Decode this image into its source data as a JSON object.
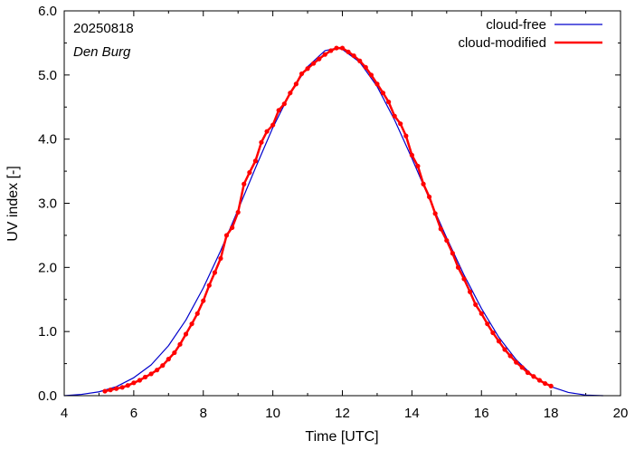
{
  "chart_data": {
    "type": "line",
    "annotations": {
      "date": "20250818",
      "location": "Den Burg"
    },
    "xlabel": "Time  [UTC]",
    "ylabel": "UV index  [-]",
    "xlim": [
      4,
      20
    ],
    "ylim": [
      0,
      6
    ],
    "xticks": [
      "4",
      "6",
      "8",
      "10",
      "12",
      "14",
      "16",
      "18",
      "20"
    ],
    "yticks": [
      "0.0",
      "1.0",
      "2.0",
      "3.0",
      "4.0",
      "5.0",
      "6.0"
    ],
    "legend_position": "top-right",
    "series": [
      {
        "name": "cloud-free",
        "color": "#0000cc",
        "markers": false,
        "x": [
          4.0,
          4.5,
          5.0,
          5.5,
          6.0,
          6.5,
          7.0,
          7.5,
          8.0,
          8.5,
          9.0,
          9.5,
          10.0,
          10.5,
          11.0,
          11.5,
          11.85,
          12.0,
          12.5,
          13.0,
          13.5,
          14.0,
          14.5,
          15.0,
          15.5,
          16.0,
          16.5,
          17.0,
          17.5,
          18.0,
          18.5,
          19.0,
          19.5
        ],
        "y": [
          0.0,
          0.02,
          0.06,
          0.14,
          0.28,
          0.48,
          0.78,
          1.18,
          1.68,
          2.26,
          2.9,
          3.55,
          4.18,
          4.72,
          5.13,
          5.38,
          5.42,
          5.4,
          5.2,
          4.82,
          4.3,
          3.7,
          3.07,
          2.46,
          1.88,
          1.36,
          0.91,
          0.56,
          0.3,
          0.14,
          0.05,
          0.01,
          0.0
        ]
      },
      {
        "name": "cloud-modified",
        "color": "#ff0000",
        "markers": true,
        "x": [
          5.17,
          5.33,
          5.5,
          5.67,
          5.83,
          6.0,
          6.17,
          6.33,
          6.5,
          6.67,
          6.83,
          7.0,
          7.17,
          7.33,
          7.5,
          7.67,
          7.83,
          8.0,
          8.17,
          8.33,
          8.5,
          8.67,
          8.83,
          9.0,
          9.17,
          9.33,
          9.5,
          9.67,
          9.83,
          10.0,
          10.17,
          10.33,
          10.5,
          10.67,
          10.83,
          11.0,
          11.17,
          11.33,
          11.5,
          11.67,
          11.83,
          12.0,
          12.17,
          12.33,
          12.5,
          12.67,
          12.83,
          13.0,
          13.17,
          13.33,
          13.5,
          13.67,
          13.83,
          14.0,
          14.17,
          14.33,
          14.5,
          14.67,
          14.83,
          15.0,
          15.17,
          15.33,
          15.5,
          15.67,
          15.83,
          16.0,
          16.17,
          16.33,
          16.5,
          16.67,
          16.83,
          17.0,
          17.17,
          17.33,
          17.5,
          17.67,
          17.83,
          18.0
        ],
        "y": [
          0.07,
          0.09,
          0.11,
          0.13,
          0.16,
          0.2,
          0.24,
          0.29,
          0.34,
          0.4,
          0.47,
          0.57,
          0.67,
          0.8,
          0.96,
          1.12,
          1.28,
          1.48,
          1.72,
          1.92,
          2.14,
          2.5,
          2.62,
          2.86,
          3.3,
          3.48,
          3.66,
          3.95,
          4.12,
          4.22,
          4.45,
          4.55,
          4.72,
          4.86,
          5.02,
          5.1,
          5.18,
          5.25,
          5.32,
          5.38,
          5.42,
          5.42,
          5.36,
          5.3,
          5.22,
          5.12,
          5.0,
          4.86,
          4.72,
          4.58,
          4.36,
          4.24,
          4.05,
          3.75,
          3.58,
          3.3,
          3.1,
          2.84,
          2.6,
          2.42,
          2.22,
          2.0,
          1.82,
          1.62,
          1.42,
          1.28,
          1.12,
          0.98,
          0.85,
          0.72,
          0.62,
          0.52,
          0.44,
          0.36,
          0.3,
          0.24,
          0.19,
          0.15
        ]
      }
    ]
  }
}
